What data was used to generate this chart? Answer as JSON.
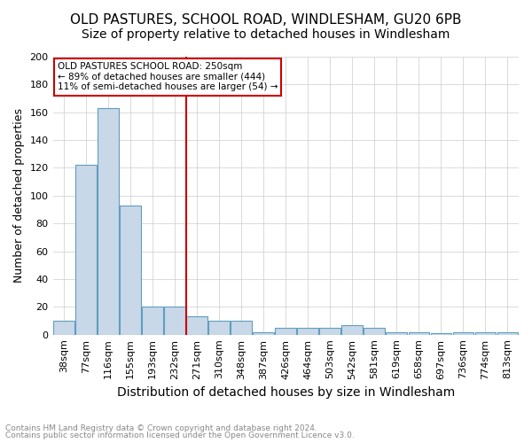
{
  "title": "OLD PASTURES, SCHOOL ROAD, WINDLESHAM, GU20 6PB",
  "subtitle": "Size of property relative to detached houses in Windlesham",
  "xlabel": "Distribution of detached houses by size in Windlesham",
  "ylabel": "Number of detached properties",
  "footnote1": "Contains HM Land Registry data © Crown copyright and database right 2024.",
  "footnote2": "Contains public sector information licensed under the Open Government Licence v3.0.",
  "categories": [
    "38sqm",
    "77sqm",
    "116sqm",
    "155sqm",
    "193sqm",
    "232sqm",
    "271sqm",
    "310sqm",
    "348sqm",
    "387sqm",
    "426sqm",
    "464sqm",
    "503sqm",
    "542sqm",
    "581sqm",
    "619sqm",
    "658sqm",
    "697sqm",
    "736sqm",
    "774sqm",
    "813sqm"
  ],
  "values": [
    10,
    122,
    163,
    93,
    20,
    20,
    13,
    10,
    10,
    2,
    5,
    5,
    5,
    7,
    5,
    2,
    2,
    1,
    2,
    2,
    2
  ],
  "bar_color": "#c8d8e8",
  "bar_edge_color": "#5f9ec0",
  "vline_x": 5.5,
  "vline_color": "#cc0000",
  "annotation_title": "OLD PASTURES SCHOOL ROAD: 250sqm",
  "annotation_line1": "← 89% of detached houses are smaller (444)",
  "annotation_line2": "11% of semi-detached houses are larger (54) →",
  "annotation_box_color": "#ffffff",
  "annotation_border_color": "#cc0000",
  "ylim": [
    0,
    200
  ],
  "yticks": [
    0,
    20,
    40,
    60,
    80,
    100,
    120,
    140,
    160,
    180,
    200
  ],
  "grid_color": "#cccccc",
  "background_color": "#ffffff",
  "title_fontsize": 11,
  "subtitle_fontsize": 10,
  "tick_fontsize": 8,
  "ylabel_fontsize": 9,
  "xlabel_fontsize": 10,
  "annotation_fontsize": 7.5,
  "footnote_fontsize": 6.5,
  "footnote_color": "#888888"
}
